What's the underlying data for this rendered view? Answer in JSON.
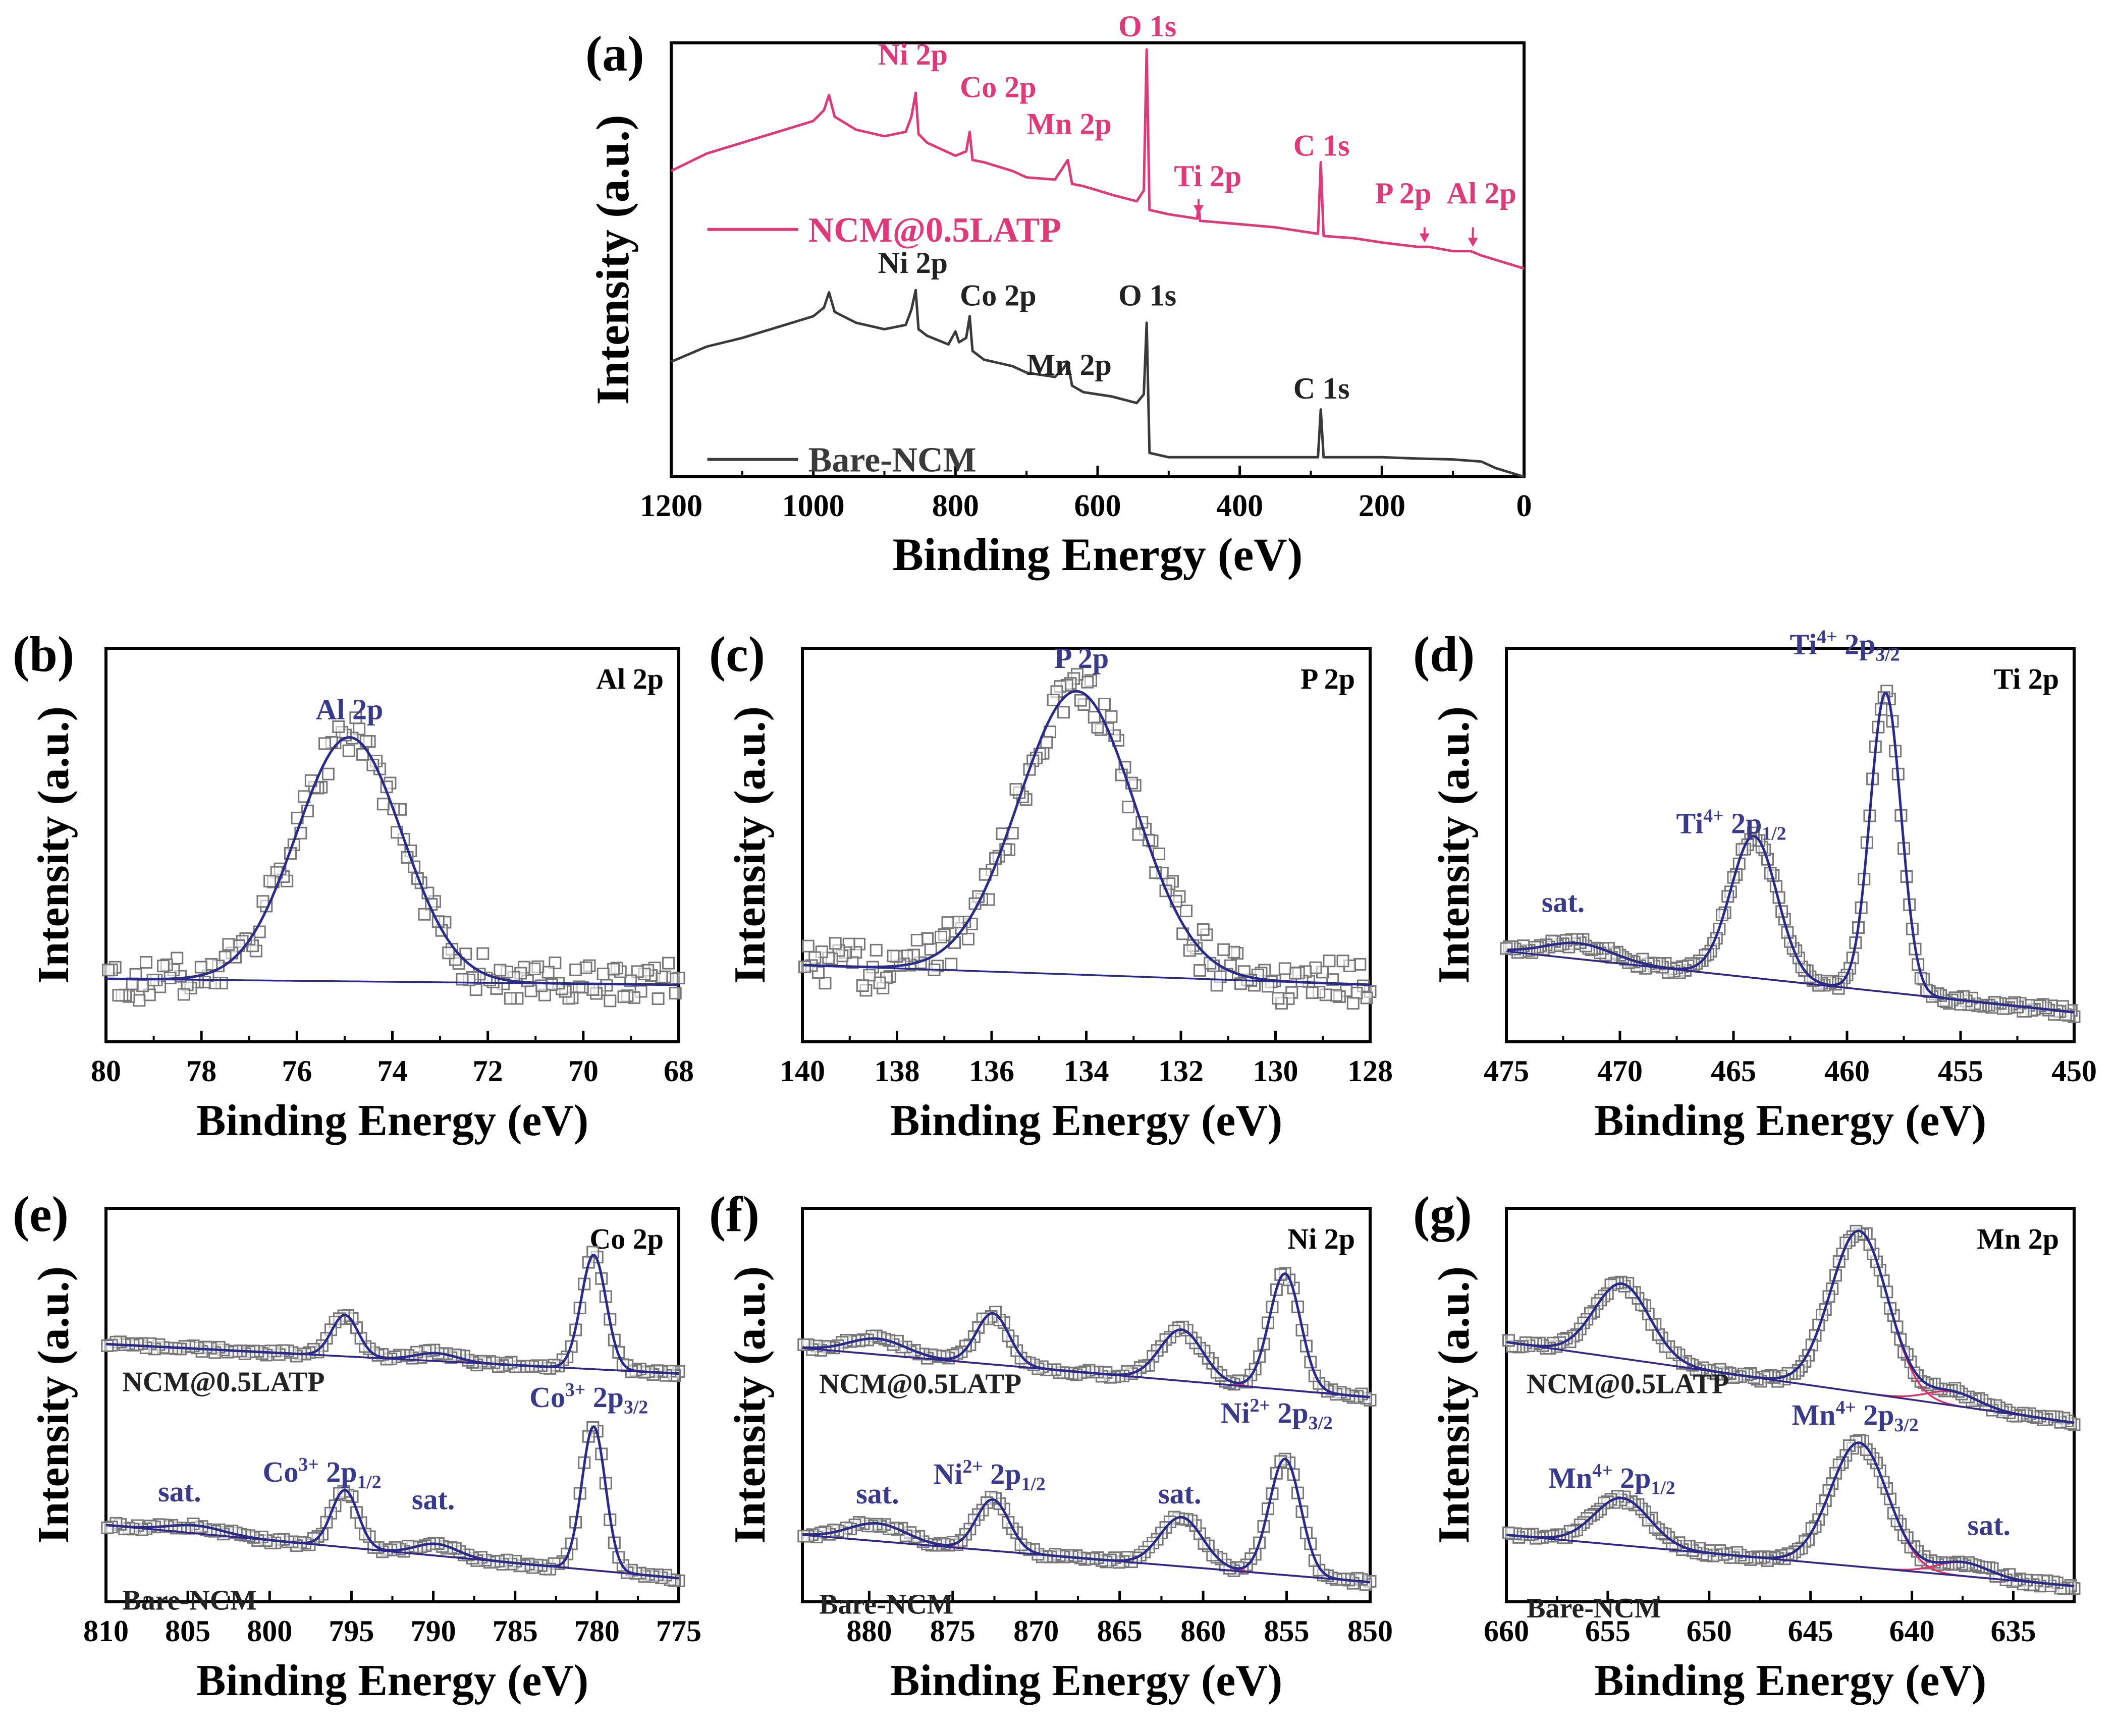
{
  "figure": {
    "colors": {
      "ncm_latp": "#e0397a",
      "bare": "#3a3a3a",
      "fit": "#2a2a8c",
      "component": "#d9306a",
      "marker": "#777777",
      "label_blue": "#3a3a8c",
      "label_pink": "#e0397a"
    }
  },
  "chart_data": [
    {
      "id": "a",
      "type": "line",
      "panel_label": "(a)",
      "xlabel": "Binding Energy (eV)",
      "ylabel": "Intensity (a.u.)",
      "xlim": [
        1200,
        0
      ],
      "ylim": [
        0,
        10
      ],
      "x_ticks": [
        1200,
        1000,
        800,
        600,
        400,
        200,
        0
      ],
      "x_tick_labels": [
        "1200",
        "1000",
        "800",
        "600",
        "400",
        "200",
        "0"
      ],
      "series": [
        {
          "name": "NCM@0.5LATP",
          "color": "#e0397a",
          "points": [
            [
              1200,
              7.05
            ],
            [
              1150,
              7.45
            ],
            [
              1100,
              7.7
            ],
            [
              1050,
              7.95
            ],
            [
              1000,
              8.2
            ],
            [
              985,
              8.45
            ],
            [
              978,
              8.8
            ],
            [
              970,
              8.3
            ],
            [
              940,
              8.0
            ],
            [
              900,
              7.85
            ],
            [
              870,
              7.95
            ],
            [
              862,
              8.3
            ],
            [
              856,
              8.85
            ],
            [
              852,
              7.9
            ],
            [
              840,
              7.7
            ],
            [
              800,
              7.4
            ],
            [
              785,
              7.5
            ],
            [
              780,
              7.95
            ],
            [
              776,
              7.3
            ],
            [
              760,
              7.25
            ],
            [
              720,
              7.05
            ],
            [
              700,
              6.9
            ],
            [
              660,
              6.85
            ],
            [
              648,
              7.15
            ],
            [
              642,
              7.3
            ],
            [
              636,
              6.75
            ],
            [
              620,
              6.7
            ],
            [
              580,
              6.5
            ],
            [
              545,
              6.35
            ],
            [
              535,
              6.6
            ],
            [
              531,
              9.85
            ],
            [
              527,
              6.15
            ],
            [
              500,
              6.05
            ],
            [
              460,
              5.95
            ],
            [
              458,
              6.25
            ],
            [
              456,
              5.9
            ],
            [
              420,
              5.85
            ],
            [
              350,
              5.75
            ],
            [
              290,
              5.6
            ],
            [
              286,
              7.25
            ],
            [
              282,
              5.55
            ],
            [
              240,
              5.5
            ],
            [
              200,
              5.4
            ],
            [
              150,
              5.3
            ],
            [
              134,
              5.3
            ],
            [
              100,
              5.2
            ],
            [
              75,
              5.2
            ],
            [
              60,
              5.1
            ],
            [
              40,
              5.0
            ],
            [
              0,
              4.8
            ]
          ]
        },
        {
          "name": "Bare-NCM",
          "color": "#3a3a3a",
          "points": [
            [
              1200,
              2.65
            ],
            [
              1150,
              3.0
            ],
            [
              1100,
              3.2
            ],
            [
              1050,
              3.45
            ],
            [
              1000,
              3.7
            ],
            [
              985,
              3.9
            ],
            [
              978,
              4.25
            ],
            [
              970,
              3.8
            ],
            [
              940,
              3.55
            ],
            [
              900,
              3.4
            ],
            [
              870,
              3.5
            ],
            [
              862,
              3.85
            ],
            [
              856,
              4.3
            ],
            [
              852,
              3.4
            ],
            [
              840,
              3.25
            ],
            [
              810,
              3.05
            ],
            [
              800,
              3.35
            ],
            [
              795,
              3.1
            ],
            [
              785,
              3.2
            ],
            [
              780,
              3.7
            ],
            [
              776,
              2.9
            ],
            [
              760,
              2.7
            ],
            [
              720,
              2.55
            ],
            [
              700,
              2.4
            ],
            [
              660,
              2.3
            ],
            [
              648,
              2.5
            ],
            [
              642,
              2.65
            ],
            [
              636,
              2.1
            ],
            [
              620,
              1.95
            ],
            [
              580,
              1.85
            ],
            [
              545,
              1.7
            ],
            [
              535,
              1.9
            ],
            [
              531,
              3.55
            ],
            [
              527,
              0.55
            ],
            [
              500,
              0.45
            ],
            [
              420,
              0.45
            ],
            [
              350,
              0.45
            ],
            [
              290,
              0.45
            ],
            [
              286,
              1.55
            ],
            [
              282,
              0.45
            ],
            [
              240,
              0.45
            ],
            [
              200,
              0.45
            ],
            [
              150,
              0.42
            ],
            [
              100,
              0.4
            ],
            [
              60,
              0.35
            ],
            [
              40,
              0.2
            ],
            [
              0,
              0.0
            ]
          ]
        }
      ],
      "series_labels": [
        {
          "text": "NCM@0.5LATP",
          "x": 1000,
          "y": 5.7,
          "color": "#e0397a"
        },
        {
          "text": "Bare-NCM",
          "x": 1000,
          "y": 0.4,
          "color": "#3a3a3a"
        }
      ],
      "annotations": [
        {
          "text": "Ni 2p",
          "x": 860,
          "y": 9.5,
          "color": "#e0397a"
        },
        {
          "text": "Co 2p",
          "x": 740,
          "y": 8.75,
          "color": "#e0397a"
        },
        {
          "text": "Mn 2p",
          "x": 640,
          "y": 7.9,
          "color": "#e0397a"
        },
        {
          "text": "O 1s",
          "x": 530,
          "y": 10.15,
          "color": "#e0397a"
        },
        {
          "text": "Ti 2p",
          "x": 445,
          "y": 6.7,
          "color": "#e0397a"
        },
        {
          "text": "C 1s",
          "x": 285,
          "y": 7.4,
          "color": "#e0397a"
        },
        {
          "text": "P 2p",
          "x": 170,
          "y": 6.3,
          "color": "#e0397a"
        },
        {
          "text": "Al 2p",
          "x": 60,
          "y": 6.3,
          "color": "#e0397a"
        },
        {
          "text": "Ni 2p",
          "x": 860,
          "y": 4.7,
          "color": "#222222"
        },
        {
          "text": "Co 2p",
          "x": 740,
          "y": 3.95,
          "color": "#222222"
        },
        {
          "text": "Mn 2p",
          "x": 640,
          "y": 2.35,
          "color": "#222222"
        },
        {
          "text": "O 1s",
          "x": 530,
          "y": 3.95,
          "color": "#222222"
        },
        {
          "text": "C 1s",
          "x": 285,
          "y": 1.8,
          "color": "#222222"
        }
      ],
      "arrows": [
        {
          "x": 458,
          "from_y": 6.4,
          "to_y": 6.05
        },
        {
          "x": 140,
          "from_y": 5.75,
          "to_y": 5.4
        },
        {
          "x": 72,
          "from_y": 5.75,
          "to_y": 5.3
        }
      ]
    },
    {
      "id": "b",
      "type": "scatter",
      "panel_label": "(b)",
      "corner_label": "Al 2p",
      "xlabel": "Binding Energy (eV)",
      "ylabel": "Intensity (a.u.)",
      "xlim": [
        80,
        68
      ],
      "ylim": [
        0,
        10
      ],
      "x_ticks": [
        80,
        78,
        76,
        74,
        72,
        70,
        68
      ],
      "x_tick_labels": [
        "80",
        "78",
        "76",
        "74",
        "72",
        "70",
        "68"
      ],
      "peaks": [
        {
          "center": 74.9,
          "height": 6.2,
          "fwhm": 2.6
        }
      ],
      "background": {
        "left": 1.6,
        "right": 1.45
      },
      "scatter_noise": 0.55,
      "scatter_step": 0.12,
      "peak_labels": [
        {
          "text": "Al 2p",
          "x": 74.9,
          "y": 8.2
        }
      ]
    },
    {
      "id": "c",
      "type": "scatter",
      "panel_label": "(c)",
      "corner_label": "P 2p",
      "xlabel": "Binding Energy (eV)",
      "ylabel": "Intensity (a.u.)",
      "xlim": [
        140,
        128
      ],
      "ylim": [
        0,
        10
      ],
      "x_ticks": [
        140,
        138,
        136,
        134,
        132,
        130,
        128
      ],
      "x_tick_labels": [
        "140",
        "138",
        "136",
        "134",
        "132",
        "130",
        "128"
      ],
      "peaks": [
        {
          "center": 134.2,
          "height": 7.2,
          "fwhm": 2.9
        }
      ],
      "background": {
        "left": 1.95,
        "right": 1.45
      },
      "scatter_noise": 0.6,
      "scatter_step": 0.12,
      "peak_labels": [
        {
          "text": "P 2p",
          "x": 134.1,
          "y": 9.5
        }
      ]
    },
    {
      "id": "d",
      "type": "scatter",
      "panel_label": "(d)",
      "corner_label": "Ti 2p",
      "xlabel": "Binding Energy (eV)",
      "ylabel": "Intensity (a.u.)",
      "xlim": [
        475,
        450
      ],
      "ylim": [
        0,
        10
      ],
      "x_ticks": [
        475,
        470,
        465,
        460,
        455,
        450
      ],
      "x_tick_labels": [
        "475",
        "470",
        "465",
        "460",
        "455",
        "450"
      ],
      "peaks": [
        {
          "center": 458.3,
          "height": 7.6,
          "fwhm": 1.6
        },
        {
          "center": 464.1,
          "height": 3.6,
          "fwhm": 2.4
        },
        {
          "center": 471.8,
          "height": 0.4,
          "fwhm": 3.5
        }
      ],
      "background": {
        "left": 2.3,
        "right": 0.75
      },
      "scatter_noise": 0.12,
      "scatter_step": 0.1,
      "peak_labels": [
        {
          "text": "Ti4+ 2p3/2",
          "x": 460.1,
          "y": 9.85
        },
        {
          "text": "Ti4+ 2p1/2",
          "x": 465.1,
          "y": 5.3
        },
        {
          "text": "sat.",
          "x": 472.5,
          "y": 3.3
        }
      ]
    },
    {
      "id": "e",
      "type": "scatter",
      "panel_label": "(e)",
      "corner_label": "Co 2p",
      "xlabel": "Binding Energy (eV)",
      "ylabel": "Intensity (a.u.)",
      "xlim": [
        810,
        775
      ],
      "ylim": [
        0,
        10
      ],
      "x_ticks": [
        810,
        805,
        800,
        795,
        790,
        785,
        780,
        775
      ],
      "x_tick_labels": [
        "810",
        "805",
        "800",
        "795",
        "790",
        "785",
        "780",
        "775"
      ],
      "stacked": [
        {
          "name": "NCM@0.5LATP",
          "peaks": [
            {
              "center": 780.2,
              "height": 2.9,
              "fwhm": 1.8
            },
            {
              "center": 795.4,
              "height": 1.05,
              "fwhm": 1.9
            },
            {
              "center": 789.8,
              "height": 0.2,
              "fwhm": 3.0
            }
          ],
          "background": {
            "left": 6.55,
            "right": 5.8
          },
          "scatter_noise": 0.08,
          "scatter_step": 0.15
        },
        {
          "name": "Bare-NCM",
          "peaks": [
            {
              "center": 780.2,
              "height": 3.65,
              "fwhm": 1.7
            },
            {
              "center": 795.4,
              "height": 1.45,
              "fwhm": 1.9
            },
            {
              "center": 789.8,
              "height": 0.3,
              "fwhm": 3.0
            },
            {
              "center": 804.5,
              "height": 0.2,
              "fwhm": 4.0
            }
          ],
          "background": {
            "left": 1.95,
            "right": 0.6
          },
          "scatter_noise": 0.08,
          "scatter_step": 0.15
        }
      ],
      "series_labels": [
        {
          "text": "NCM@0.5LATP",
          "x": 809,
          "y": 5.35
        },
        {
          "text": "Bare-NCM",
          "x": 809,
          "y": -0.2
        }
      ],
      "peak_labels": [
        {
          "text": "Co3+ 2p3/2",
          "x": 780.5,
          "y": 4.95
        },
        {
          "text": "Co3+ 2p1/2",
          "x": 796.8,
          "y": 3.05
        },
        {
          "text": "sat.",
          "x": 805.5,
          "y": 2.55
        },
        {
          "text": "sat.",
          "x": 790.0,
          "y": 2.35
        }
      ]
    },
    {
      "id": "f",
      "type": "scatter",
      "panel_label": "(f)",
      "corner_label": "Ni 2p",
      "xlabel": "Binding Energy (eV)",
      "ylabel": "Intensity (a.u.)",
      "xlim": [
        884,
        850
      ],
      "ylim": [
        0,
        10
      ],
      "x_ticks": [
        880,
        875,
        870,
        865,
        860,
        855,
        850
      ],
      "x_tick_labels": [
        "880",
        "875",
        "870",
        "865",
        "860",
        "855",
        "850"
      ],
      "stacked": [
        {
          "name": "NCM@0.5LATP",
          "peaks": [
            {
              "center": 855.1,
              "height": 2.95,
              "fwhm": 2.2
            },
            {
              "center": 861.3,
              "height": 1.3,
              "fwhm": 3.0
            },
            {
              "center": 872.6,
              "height": 1.3,
              "fwhm": 2.3
            },
            {
              "center": 879.5,
              "height": 0.4,
              "fwhm": 4.0
            }
          ],
          "background": {
            "left": 6.45,
            "right": 5.2
          },
          "scatter_noise": 0.08,
          "scatter_step": 0.15
        },
        {
          "name": "Bare-NCM",
          "peaks": [
            {
              "center": 855.1,
              "height": 2.95,
              "fwhm": 2.2
            },
            {
              "center": 861.3,
              "height": 1.25,
              "fwhm": 3.0
            },
            {
              "center": 872.6,
              "height": 1.3,
              "fwhm": 2.3
            },
            {
              "center": 879.5,
              "height": 0.45,
              "fwhm": 4.0
            }
          ],
          "background": {
            "left": 1.7,
            "right": 0.5
          },
          "scatter_noise": 0.08,
          "scatter_step": 0.15
        }
      ],
      "series_labels": [
        {
          "text": "NCM@0.5LATP",
          "x": 883,
          "y": 5.3
        },
        {
          "text": "Bare-NCM",
          "x": 883,
          "y": -0.3
        }
      ],
      "peak_labels": [
        {
          "text": "Ni2+ 2p3/2",
          "x": 855.6,
          "y": 4.55
        },
        {
          "text": "Ni2+ 2p1/2",
          "x": 872.8,
          "y": 3.0
        },
        {
          "text": "sat.",
          "x": 879.5,
          "y": 2.5
        },
        {
          "text": "sat.",
          "x": 861.4,
          "y": 2.5
        }
      ]
    },
    {
      "id": "g",
      "type": "scatter",
      "panel_label": "(g)",
      "corner_label": "Mn 2p",
      "xlabel": "Binding Energy (eV)",
      "ylabel": "Intensity (a.u.)",
      "xlim": [
        660,
        632
      ],
      "ylim": [
        0,
        10
      ],
      "x_ticks": [
        660,
        655,
        650,
        645,
        640,
        635
      ],
      "x_tick_labels": [
        "660",
        "655",
        "650",
        "645",
        "640",
        "635"
      ],
      "stacked": [
        {
          "name": "NCM@0.5LATP",
          "peaks": [
            {
              "center": 642.6,
              "height": 4.1,
              "fwhm": 3.3
            },
            {
              "center": 654.3,
              "height": 1.9,
              "fwhm": 3.2
            },
            {
              "center": 638.0,
              "height": 0.35,
              "fwhm": 3.0
            }
          ],
          "background": {
            "left": 6.6,
            "right": 4.55
          },
          "scatter_noise": 0.09,
          "scatter_step": 0.12
        },
        {
          "name": "Bare-NCM",
          "peaks": [
            {
              "center": 642.6,
              "height": 3.15,
              "fwhm": 3.3
            },
            {
              "center": 654.3,
              "height": 1.2,
              "fwhm": 3.2
            },
            {
              "center": 637.5,
              "height": 0.35,
              "fwhm": 3.0
            }
          ],
          "background": {
            "left": 1.7,
            "right": 0.4
          },
          "scatter_noise": 0.09,
          "scatter_step": 0.12
        }
      ],
      "series_labels": [
        {
          "text": "NCM@0.5LATP",
          "x": 659,
          "y": 5.3
        },
        {
          "text": "Bare-NCM",
          "x": 659,
          "y": -0.4
        }
      ],
      "peak_labels": [
        {
          "text": "Mn4+ 2p3/2",
          "x": 642.8,
          "y": 4.5
        },
        {
          "text": "Mn4+ 2p1/2",
          "x": 654.8,
          "y": 2.9
        },
        {
          "text": "sat.",
          "x": 636.2,
          "y": 1.7
        }
      ]
    }
  ]
}
